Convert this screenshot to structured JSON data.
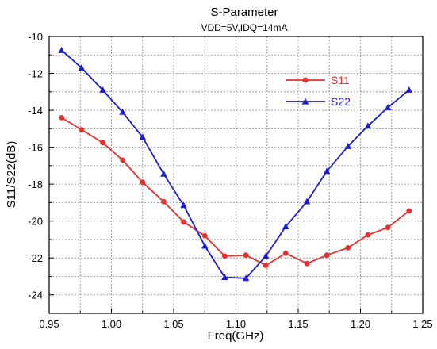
{
  "chart_data": {
    "type": "line",
    "title": "S-Parameter",
    "subtitle": "VDD=5V,IDQ=14mA",
    "xlabel": "Freq(GHz)",
    "ylabel": "S11/S22(dB)",
    "xlim": [
      0.95,
      1.25
    ],
    "ylim": [
      -25,
      -10
    ],
    "x_ticks": [
      "0.95",
      "1.00",
      "1.05",
      "1.10",
      "1.15",
      "1.20",
      "1.25"
    ],
    "y_ticks": [
      "-24",
      "-22",
      "-20",
      "-18",
      "-16",
      "-14",
      "-12",
      "-10"
    ],
    "grid": true,
    "legend_position": "top-right",
    "series": [
      {
        "name": "S11",
        "color": "#e8302f",
        "marker": "circle",
        "x": [
          0.96,
          0.976,
          0.993,
          1.009,
          1.025,
          1.042,
          1.058,
          1.075,
          1.091,
          1.108,
          1.124,
          1.14,
          1.157,
          1.173,
          1.19,
          1.206,
          1.222,
          1.239
        ],
        "y": [
          -14.4,
          -15.05,
          -15.75,
          -16.7,
          -17.9,
          -18.95,
          -20.05,
          -20.8,
          -21.9,
          -21.85,
          -22.4,
          -21.75,
          -22.3,
          -21.85,
          -21.45,
          -20.75,
          -20.35,
          -19.45
        ]
      },
      {
        "name": "S22",
        "color": "#1c1cd4",
        "marker": "triangle",
        "x": [
          0.96,
          0.976,
          0.993,
          1.009,
          1.025,
          1.042,
          1.058,
          1.075,
          1.091,
          1.108,
          1.124,
          1.14,
          1.157,
          1.173,
          1.19,
          1.206,
          1.222,
          1.239
        ],
        "y": [
          -10.75,
          -11.7,
          -12.9,
          -14.1,
          -15.45,
          -17.45,
          -19.15,
          -21.35,
          -23.05,
          -23.1,
          -21.9,
          -20.3,
          -18.95,
          -17.3,
          -15.95,
          -14.85,
          -13.85,
          -12.9
        ]
      }
    ]
  }
}
